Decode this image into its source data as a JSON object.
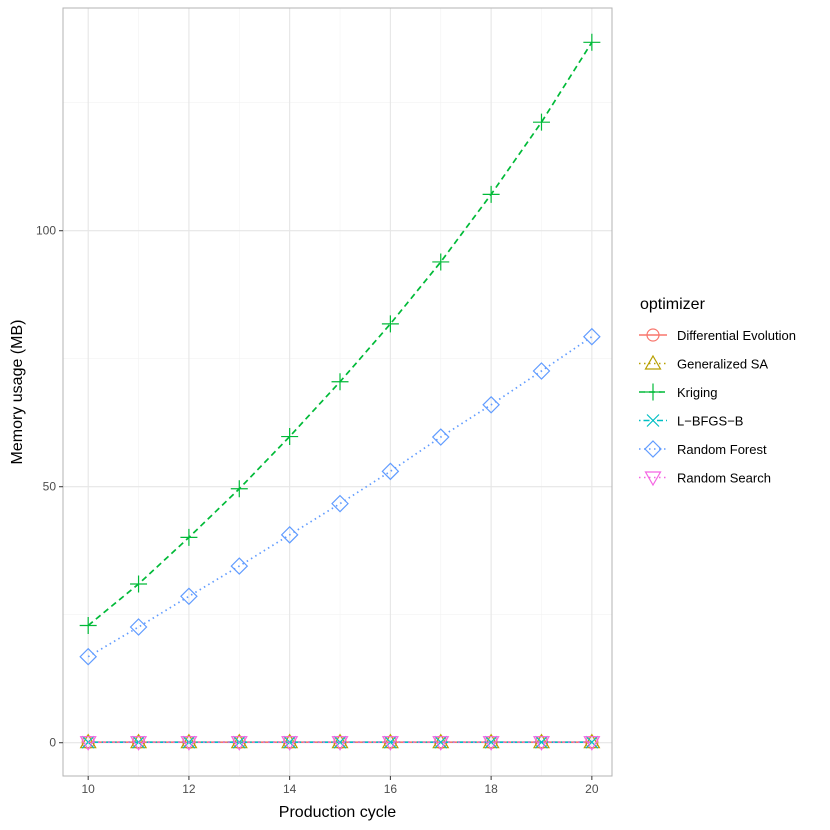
{
  "chart_data": {
    "type": "line",
    "xlabel": "Production cycle",
    "ylabel": "Memory usage (MB)",
    "xlim": [
      9.5,
      20.4
    ],
    "ylim": [
      -6.5,
      143.5
    ],
    "x_ticks": [
      10,
      12,
      14,
      16,
      18,
      20
    ],
    "y_ticks": [
      0,
      50,
      100
    ],
    "grid": true,
    "legend": {
      "title": "optimizer",
      "position": "right"
    },
    "x": [
      10,
      11,
      12,
      13,
      14,
      15,
      16,
      17,
      18,
      19,
      20
    ],
    "series": [
      {
        "name": "Differential Evolution",
        "color": "#F8766D",
        "shape": "circle",
        "dash": "solid",
        "values": [
          0.1,
          0.1,
          0.1,
          0.1,
          0.1,
          0.1,
          0.1,
          0.1,
          0.1,
          0.1,
          0.1
        ]
      },
      {
        "name": "Generalized SA",
        "color": "#B79F00",
        "shape": "triangle-up",
        "dash": "dotted",
        "values": [
          0.1,
          0.1,
          0.1,
          0.1,
          0.1,
          0.1,
          0.1,
          0.1,
          0.1,
          0.1,
          0.1
        ]
      },
      {
        "name": "Kriging",
        "color": "#00BA38",
        "shape": "plus",
        "dash": "dashed",
        "values": [
          22.9,
          31.0,
          40.1,
          49.6,
          59.8,
          70.5,
          81.8,
          93.9,
          107.1,
          121.2,
          136.8
        ]
      },
      {
        "name": "L−BFGS−B",
        "color": "#00BFC4",
        "shape": "x",
        "dash": "dotdash",
        "values": [
          0.1,
          0.1,
          0.1,
          0.1,
          0.1,
          0.1,
          0.1,
          0.1,
          0.1,
          0.1,
          0.1
        ]
      },
      {
        "name": "Random Forest",
        "color": "#619CFF",
        "shape": "diamond",
        "dash": "dotted",
        "values": [
          16.8,
          22.6,
          28.6,
          34.5,
          40.6,
          46.7,
          53.0,
          59.7,
          66.0,
          72.6,
          79.3
        ]
      },
      {
        "name": "Random Search",
        "color": "#F564E3",
        "shape": "triangle-down",
        "dash": "dotted",
        "values": [
          0.1,
          0.1,
          0.1,
          0.1,
          0.1,
          0.1,
          0.1,
          0.1,
          0.1,
          0.1,
          0.1
        ]
      }
    ]
  }
}
